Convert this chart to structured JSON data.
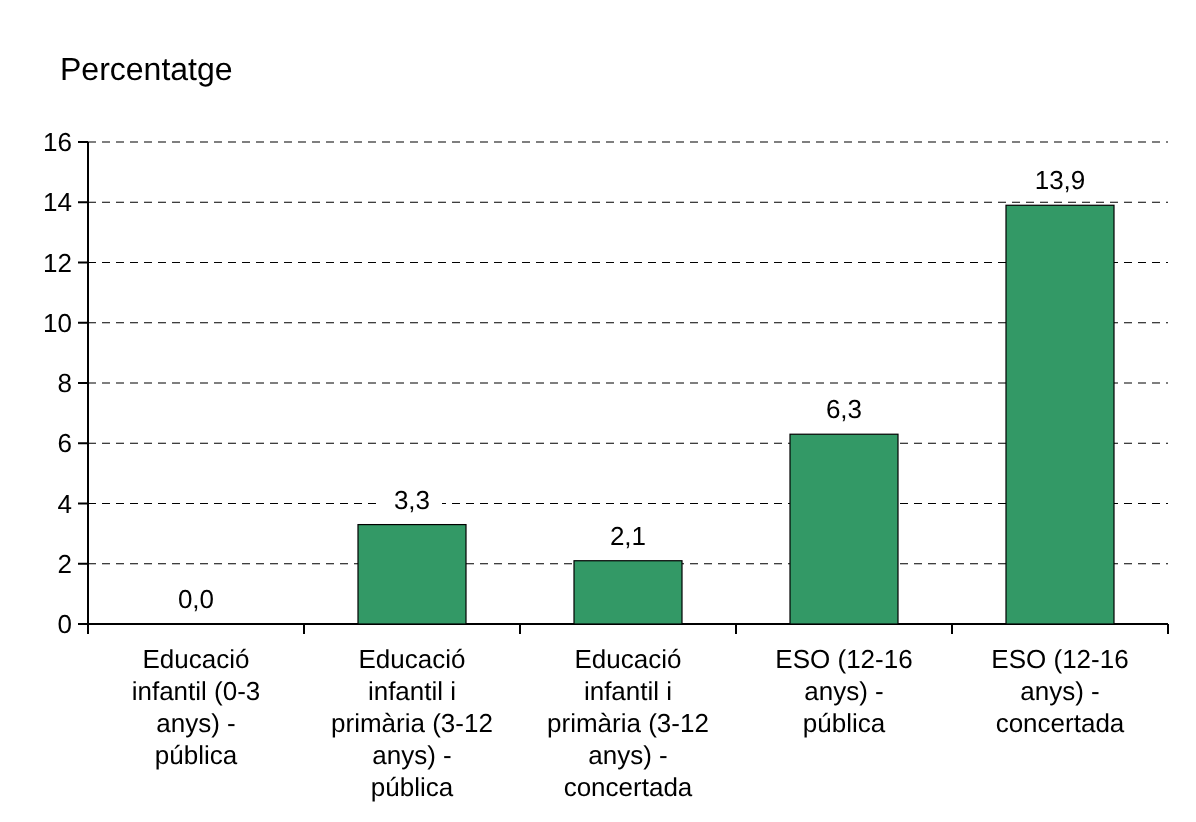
{
  "chart_data": {
    "type": "bar",
    "title": "Percentatge",
    "categories": [
      "Educació infantil (0-3 anys) - pública",
      "Educació infantil i primària (3-12 anys) - pública",
      "Educació infantil i primària (3-12 anys) - concertada",
      "ESO (12-16 anys) - pública",
      "ESO (12-16 anys) - concertada"
    ],
    "values": [
      0.0,
      3.3,
      2.1,
      6.3,
      13.9
    ],
    "value_labels": [
      "0,0",
      "3,3",
      "2,1",
      "6,3",
      "13,9"
    ],
    "color": "#339966",
    "ylim": [
      0,
      16
    ],
    "yticks": [
      0,
      2,
      4,
      6,
      8,
      10,
      12,
      14,
      16
    ],
    "grid": "y"
  }
}
